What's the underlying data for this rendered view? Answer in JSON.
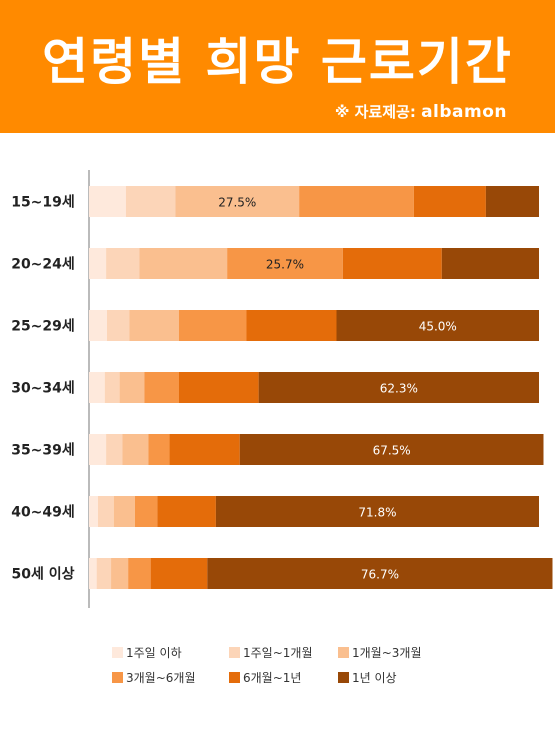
{
  "header": {
    "title": "연령별 희망 근로기간",
    "source_prefix": "※ 자료제공:",
    "source_brand": "albamon"
  },
  "colors": {
    "header_bg": "#ff8a00",
    "segments": [
      "#fee9dc",
      "#fcd5b8",
      "#fabf8f",
      "#f79646",
      "#e46c0a",
      "#984807"
    ]
  },
  "chart_data": {
    "type": "bar",
    "orientation": "horizontal",
    "stacked": true,
    "percent": true,
    "xlim": [
      0,
      100
    ],
    "legend_position": "bottom",
    "categories": [
      "15~19세",
      "20~24세",
      "25~29세",
      "30~34세",
      "35~39세",
      "40~49세",
      "50세 이상"
    ],
    "series": [
      {
        "name": "1주일 이하",
        "values": [
          8.2,
          3.8,
          4.0,
          3.5,
          3.8,
          2.0,
          1.7
        ]
      },
      {
        "name": "1주일~1개월",
        "values": [
          11.0,
          7.4,
          5.0,
          3.3,
          3.6,
          3.5,
          3.2
        ]
      },
      {
        "name": "1개월~3개월",
        "values": [
          27.5,
          19.5,
          11.0,
          5.5,
          5.8,
          4.7,
          3.8
        ]
      },
      {
        "name": "3개월~6개월",
        "values": [
          25.5,
          25.7,
          15.0,
          7.7,
          4.7,
          5.0,
          5.0
        ]
      },
      {
        "name": "6개월~1년",
        "values": [
          16.0,
          22.0,
          20.0,
          17.7,
          15.6,
          13.0,
          12.6
        ]
      },
      {
        "name": "1년 이상",
        "values": [
          11.8,
          21.6,
          45.0,
          62.3,
          67.5,
          71.8,
          76.7
        ]
      }
    ],
    "data_labels": [
      {
        "row": 0,
        "series": 2,
        "text": "27.5%"
      },
      {
        "row": 1,
        "series": 3,
        "text": "25.7%"
      },
      {
        "row": 2,
        "series": 5,
        "text": "45.0%"
      },
      {
        "row": 3,
        "series": 5,
        "text": "62.3%"
      },
      {
        "row": 4,
        "series": 5,
        "text": "67.5%"
      },
      {
        "row": 5,
        "series": 5,
        "text": "71.8%"
      },
      {
        "row": 6,
        "series": 5,
        "text": "76.7%"
      }
    ]
  }
}
